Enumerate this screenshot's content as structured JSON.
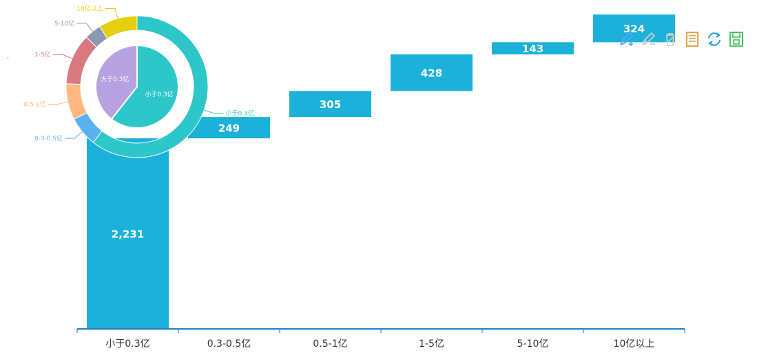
{
  "chart_data": [
    {
      "type": "bar",
      "subtype": "waterfall",
      "categories": [
        "小于0.3亿",
        "0.3-0.5亿",
        "0.5-1亿",
        "1-5亿",
        "5-10亿",
        "10亿以上"
      ],
      "values": [
        2231,
        249,
        305,
        428,
        143,
        324
      ],
      "value_labels": [
        "2,231",
        "249",
        "305",
        "428",
        "143",
        "324"
      ],
      "ylim": [
        0,
        3850
      ],
      "bar_color": "#1bb1d9",
      "axis_color": "#1e7ec8",
      "grid": false
    },
    {
      "type": "pie",
      "subtype": "donut-with-inner-pie",
      "outer": {
        "labels": [
          "小于0.3亿",
          "0.3-0.5亿",
          "0.5-1亿",
          "1-5亿",
          "5-10亿",
          "10亿以上"
        ],
        "values": [
          2231,
          249,
          305,
          428,
          143,
          324
        ],
        "colors": [
          "#2ec7c9",
          "#5ab1ef",
          "#ffb980",
          "#d87a80",
          "#8d98b3",
          "#e5cf0d"
        ]
      },
      "inner": {
        "labels": [
          "小于0.3亿",
          "大于0.3亿"
        ],
        "values": [
          2231,
          1449
        ],
        "colors": [
          "#2ec7c9",
          "#b6a2de"
        ]
      }
    }
  ],
  "toolbar": {
    "icons": [
      "mark-icon",
      "mark-undo-icon",
      "mark-clear-icon",
      "data-view-icon",
      "restore-icon",
      "save-image-icon"
    ],
    "colors": [
      "#5aa9ef",
      "#c8c8c8",
      "#c8c8c8",
      "#e8963a",
      "#1e9ae0",
      "#3cc15b"
    ]
  },
  "side_mark": "ﾞ"
}
